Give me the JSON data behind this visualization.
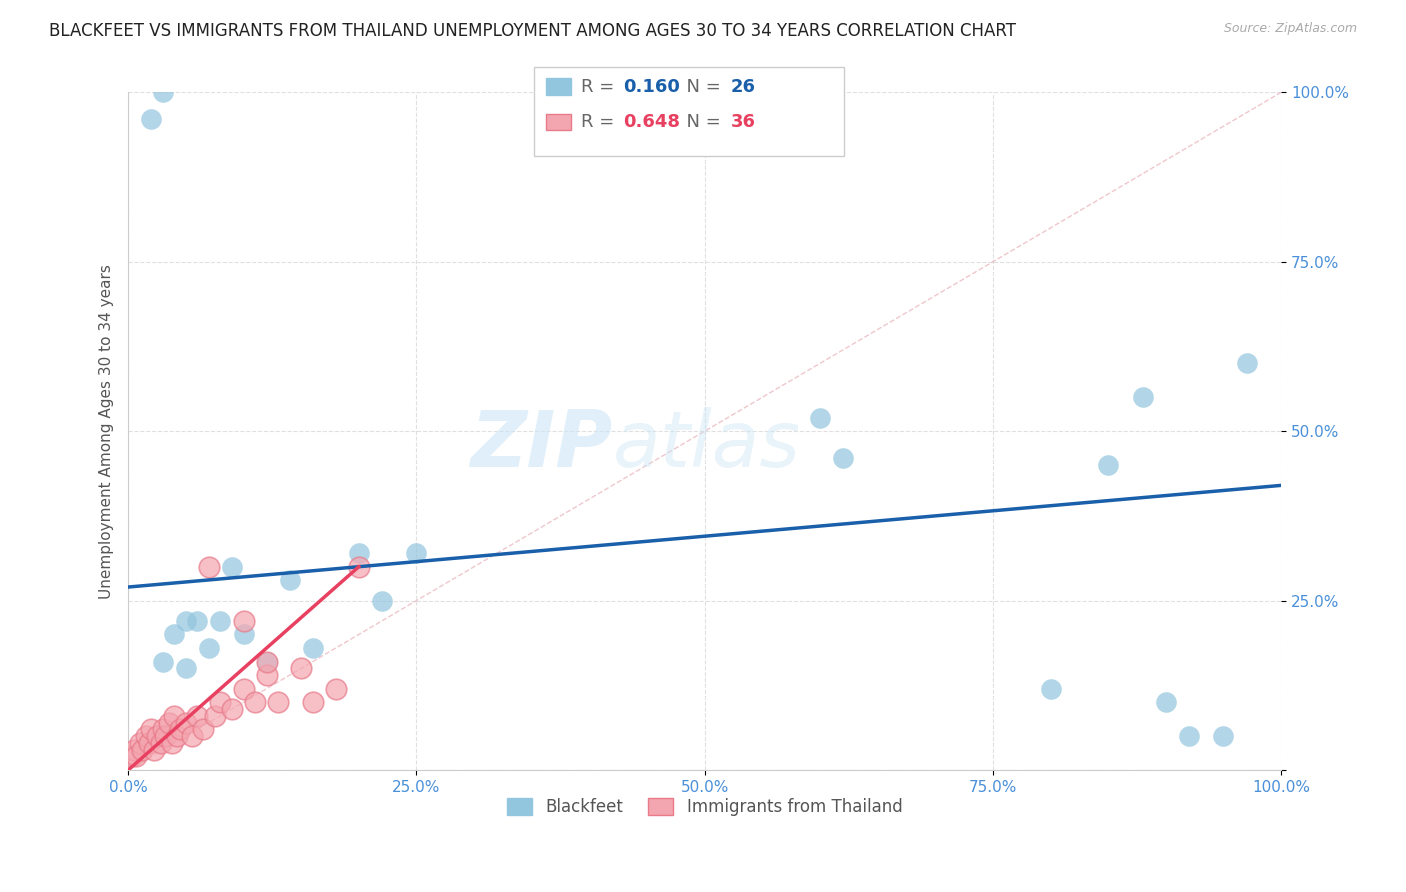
{
  "title": "BLACKFEET VS IMMIGRANTS FROM THAILAND UNEMPLOYMENT AMONG AGES 30 TO 34 YEARS CORRELATION CHART",
  "source": "Source: ZipAtlas.com",
  "ylabel": "Unemployment Among Ages 30 to 34 years",
  "xlim": [
    0,
    100
  ],
  "ylim": [
    0,
    100
  ],
  "xticks": [
    0,
    25,
    50,
    75,
    100
  ],
  "yticks": [
    0,
    25,
    50,
    75,
    100
  ],
  "xticklabels": [
    "0.0%",
    "25.0%",
    "50.0%",
    "75.0%",
    "100.0%"
  ],
  "yticklabels": [
    "",
    "25.0%",
    "50.0%",
    "75.0%",
    "100.0%"
  ],
  "blue_entry": {
    "label": "Blackfeet",
    "color": "#92c5de",
    "R": "0.160",
    "N": "26"
  },
  "pink_entry": {
    "label": "Immigrants from Thailand",
    "color": "#f4a6b0",
    "R": "0.648",
    "N": "36"
  },
  "blackfeet_x": [
    2,
    3,
    3,
    4,
    5,
    5,
    6,
    7,
    8,
    9,
    10,
    12,
    14,
    16,
    80,
    85,
    88,
    90,
    92,
    95,
    97,
    20,
    22,
    25,
    60,
    62
  ],
  "blackfeet_y": [
    96,
    100,
    16,
    20,
    22,
    15,
    22,
    18,
    22,
    30,
    20,
    16,
    28,
    18,
    12,
    45,
    55,
    10,
    5,
    5,
    60,
    32,
    25,
    32,
    52,
    46
  ],
  "thailand_x": [
    0.3,
    0.5,
    0.7,
    1.0,
    1.2,
    1.5,
    1.8,
    2.0,
    2.2,
    2.5,
    2.8,
    3.0,
    3.2,
    3.5,
    3.8,
    4.0,
    4.2,
    4.5,
    5.0,
    5.5,
    6.0,
    6.5,
    7.0,
    7.5,
    8.0,
    9.0,
    10.0,
    11.0,
    12.0,
    13.0,
    15.0,
    16.0,
    18.0,
    10.0,
    12.0,
    20.0
  ],
  "thailand_y": [
    2,
    3,
    2,
    4,
    3,
    5,
    4,
    6,
    3,
    5,
    4,
    6,
    5,
    7,
    4,
    8,
    5,
    6,
    7,
    5,
    8,
    6,
    30,
    8,
    10,
    9,
    12,
    10,
    14,
    10,
    15,
    10,
    12,
    22,
    16,
    30
  ],
  "blue_line_x": [
    0,
    100
  ],
  "blue_line_y": [
    27,
    42
  ],
  "pink_line_x": [
    0,
    20
  ],
  "pink_line_y": [
    0,
    30
  ],
  "diag_color": "#f4a6b0",
  "blue_scatter_color": "#92c5de",
  "pink_scatter_color": "#f4a6b0",
  "pink_scatter_edge": "#e87a8a",
  "blue_line_color": "#1a5faa",
  "pink_line_color": "#e84060",
  "tick_color": "#4a90d9",
  "background_color": "#ffffff",
  "grid_color": "#dddddd",
  "title_fontsize": 12,
  "axis_label_fontsize": 11,
  "tick_fontsize": 11
}
